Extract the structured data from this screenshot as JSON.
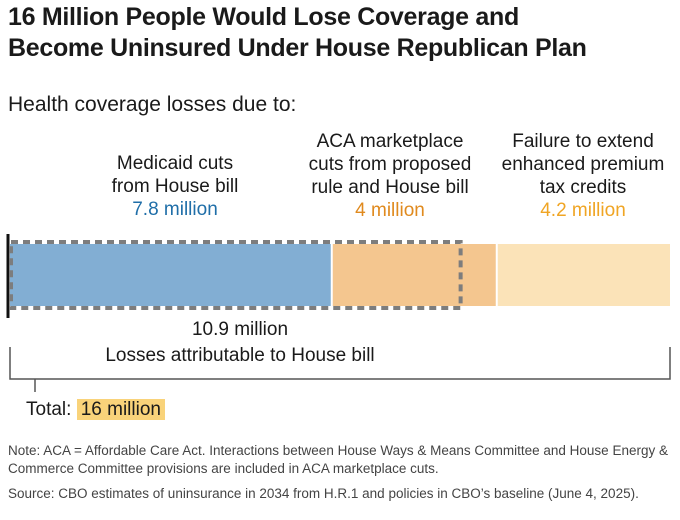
{
  "title_line1": "16 Million People Would Lose Coverage and",
  "title_line2": "Become Uninsured Under House Republican Plan",
  "subtitle": "Health coverage losses due to:",
  "chart_data": {
    "type": "bar",
    "orientation": "horizontal-stacked",
    "title": "16 Million People Would Lose Coverage and Become Uninsured Under House Republican Plan",
    "subtitle": "Health coverage losses due to:",
    "units": "million people",
    "series": [
      {
        "name": "Medicaid cuts from House bill",
        "label_lines": [
          "Medicaid cuts",
          "from House bill"
        ],
        "value_label": "7.8 million",
        "value": 7.8,
        "color": "#82aed3",
        "label_color": "#1f6ea8"
      },
      {
        "name": "ACA marketplace cuts from proposed rule and House bill",
        "label_lines": [
          "ACA marketplace",
          "cuts from proposed",
          "rule and House bill"
        ],
        "value_label": "4 million",
        "value": 4.0,
        "color": "#f4c68f",
        "label_color": "#e08a1e"
      },
      {
        "name": "Failure to extend enhanced premium tax credits",
        "label_lines": [
          "Failure to extend",
          "enhanced premium",
          "tax credits"
        ],
        "value_label": "4.2 million",
        "value": 4.2,
        "color": "#fbe3b8",
        "label_color": "#f0a524"
      }
    ],
    "house_bill_value": 10.9,
    "house_bill_value_label": "10.9 million",
    "house_bill_label": "Losses attributable to House bill",
    "total_prefix": "Total:",
    "total_label": "16 million",
    "total_value": 16.0
  },
  "note": "Note: ACA = Affordable Care Act. Interactions between House Ways & Means Committee and House Energy & Commerce Committee provisions are included in ACA marketplace cuts.",
  "source": "Source: CBO estimates of uninsurance in 2034 from H.R.1 and policies in CBO’s baseline (June 4, 2025)."
}
